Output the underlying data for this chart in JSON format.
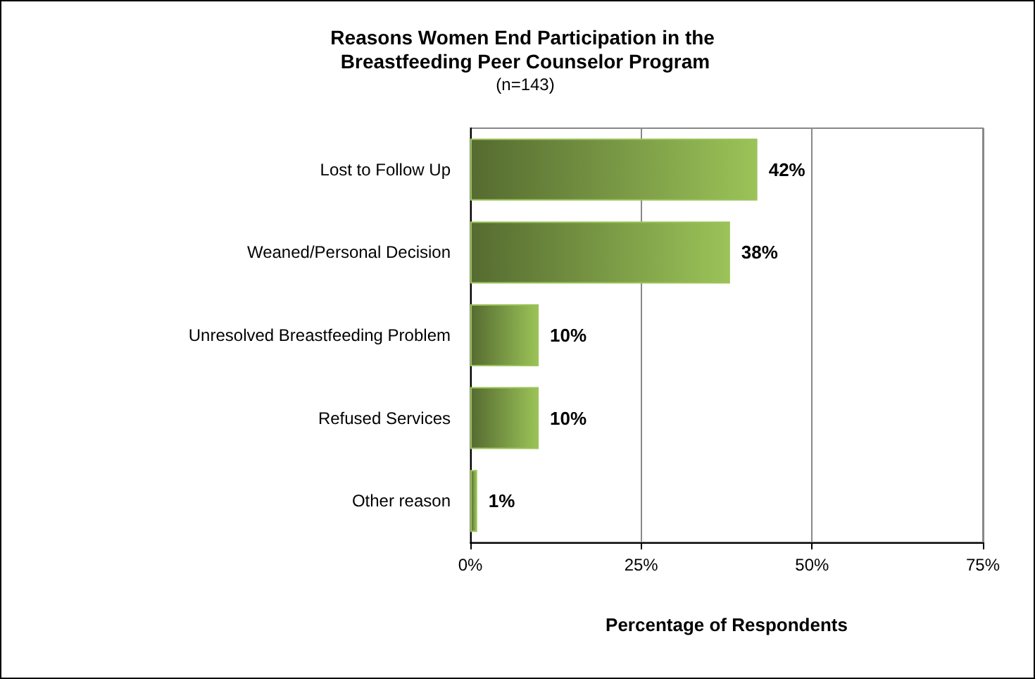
{
  "chart_data": {
    "type": "bar",
    "orientation": "horizontal",
    "title": "Reasons Women End Participation in the Breastfeeding Peer Counselor Program",
    "subtitle": "(n=143)",
    "xlabel": "Percentage of Respondents",
    "categories": [
      "Lost to Follow Up",
      "Weaned/Personal Decision",
      "Unresolved Breastfeeding Problem",
      "Refused Services",
      "Other reason"
    ],
    "values": [
      42,
      38,
      10,
      10,
      1
    ],
    "value_labels": [
      "42%",
      "38%",
      "10%",
      "10%",
      "1%"
    ],
    "color": "#9bc358",
    "xlim": [
      0,
      75
    ],
    "xticks": [
      {
        "value": 0,
        "label": "0%"
      },
      {
        "value": 25,
        "label": "25%"
      },
      {
        "value": 50,
        "label": "50%"
      },
      {
        "value": 75,
        "label": "75%"
      }
    ],
    "grid": "x"
  }
}
